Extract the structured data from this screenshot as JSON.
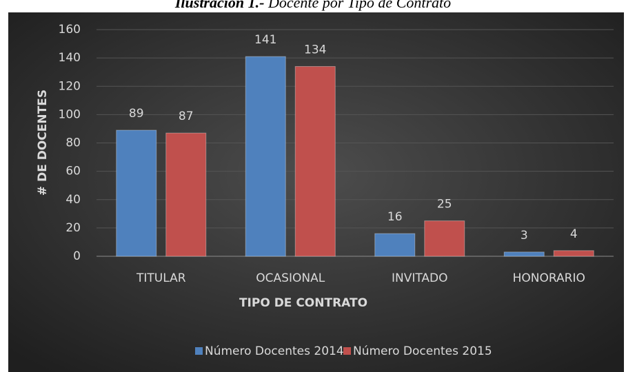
{
  "chart_data": {
    "type": "bar",
    "title_label": "Ilustración 1.-",
    "title": "Docente por Tipo de Contrato",
    "x_label": "TIPO DE CONTRATO",
    "y_label": "# DE DOCENTES",
    "categories": [
      "TITULAR",
      "OCASIONAL",
      "INVITADO",
      "HONORARIO"
    ],
    "series": [
      {
        "name": "Número Docentes 2014",
        "color": "#4f81bd",
        "values": [
          89,
          141,
          16,
          3
        ]
      },
      {
        "name": "Número Docentes 2015",
        "color": "#c0504d",
        "values": [
          87,
          134,
          25,
          4
        ]
      }
    ],
    "ylim": [
      0,
      160
    ],
    "yticks": [
      0,
      20,
      40,
      60,
      80,
      100,
      120,
      140,
      160
    ],
    "grid": true,
    "legend": "bottom"
  }
}
